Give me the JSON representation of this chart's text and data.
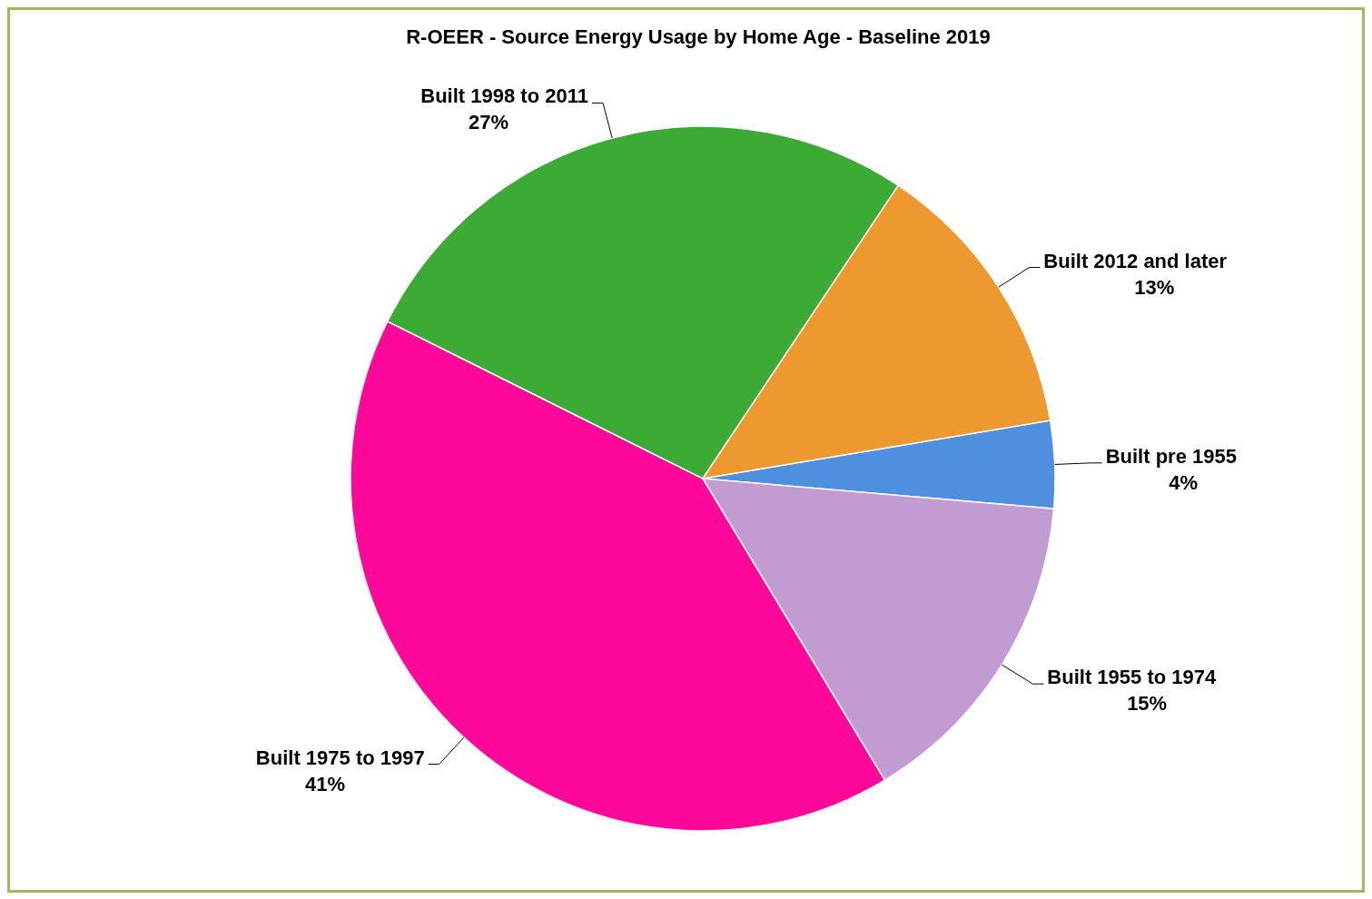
{
  "chart_data": {
    "type": "pie",
    "title": "R-OEER - Source Energy Usage by Home Age - Baseline 2019",
    "categories": [
      "Built pre 1955",
      "Built 1955 to 1974",
      "Built 1975 to 1997",
      "Built 1998 to 2011",
      "Built 2012 and later"
    ],
    "values": [
      4,
      15,
      41,
      27,
      13
    ],
    "value_labels": [
      "4%",
      "15%",
      "41%",
      "27%",
      "13%"
    ],
    "colors": [
      "#4f8fe0",
      "#c39bd3",
      "#ff0899",
      "#3cab35",
      "#ed9930"
    ]
  }
}
